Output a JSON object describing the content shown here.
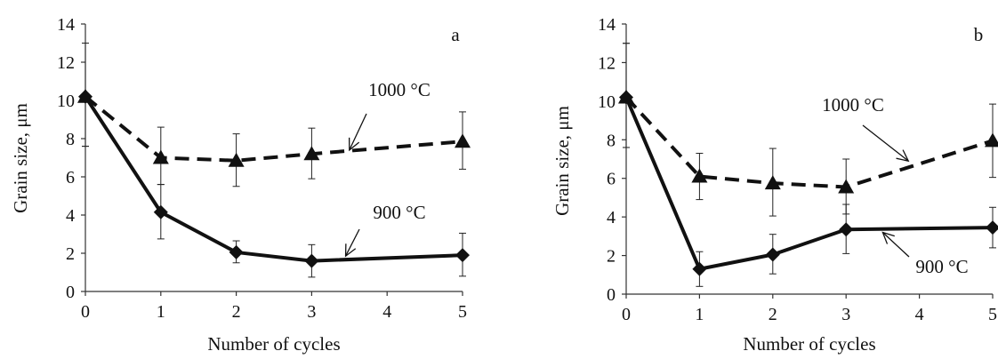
{
  "chart_data": [
    {
      "type": "line",
      "panel_label": "a",
      "xlabel": "Number of cycles",
      "ylabel": "Grain size, μm",
      "x_ticks": [
        0,
        1,
        2,
        3,
        4,
        5
      ],
      "y_ticks": [
        0,
        2,
        4,
        6,
        8,
        10,
        12,
        14
      ],
      "xlim": [
        0,
        5
      ],
      "ylim": [
        0,
        14
      ],
      "grid": false,
      "legend": "none",
      "series": [
        {
          "annotation": "1000 °C",
          "line_style": "dashed",
          "marker": "triangle",
          "color": "#111111",
          "x": [
            0,
            1,
            2,
            3,
            5
          ],
          "y": [
            10.2,
            7.0,
            6.85,
            7.2,
            7.85
          ],
          "err_low": [
            2.6,
            1.4,
            1.35,
            1.3,
            1.45
          ],
          "err_high": [
            2.8,
            1.6,
            1.4,
            1.35,
            1.55
          ]
        },
        {
          "annotation": "900 °C",
          "line_style": "solid",
          "marker": "diamond",
          "color": "#111111",
          "x": [
            0,
            1,
            2,
            3,
            5
          ],
          "y": [
            10.2,
            4.15,
            2.05,
            1.6,
            1.9
          ],
          "err_low": [
            2.6,
            1.4,
            0.55,
            0.85,
            1.1
          ],
          "err_high": [
            2.8,
            1.45,
            0.6,
            0.85,
            1.15
          ]
        }
      ],
      "annotations": [
        {
          "text": "1000 °C",
          "arrow_to": [
            3.5,
            7.4
          ]
        },
        {
          "text": "900 °C",
          "arrow_to": [
            3.45,
            1.85
          ]
        }
      ]
    },
    {
      "type": "line",
      "panel_label": "b",
      "xlabel": "Number of cycles",
      "ylabel": "Grain size, μm",
      "x_ticks": [
        0,
        1,
        2,
        3,
        4,
        5
      ],
      "y_ticks": [
        0,
        2,
        4,
        6,
        8,
        10,
        12,
        14
      ],
      "xlim": [
        0,
        5
      ],
      "ylim": [
        0,
        14
      ],
      "grid": false,
      "legend": "none",
      "series": [
        {
          "annotation": "1000 °C",
          "line_style": "dashed",
          "marker": "triangle",
          "color": "#111111",
          "x": [
            0,
            1,
            2,
            3,
            5
          ],
          "y": [
            10.2,
            6.1,
            5.75,
            5.55,
            7.95
          ],
          "err_low": [
            2.6,
            1.2,
            1.7,
            1.4,
            1.9
          ],
          "err_high": [
            2.8,
            1.2,
            1.8,
            1.45,
            1.9
          ]
        },
        {
          "annotation": "900 °C",
          "line_style": "solid",
          "marker": "diamond",
          "color": "#111111",
          "x": [
            0,
            1,
            2,
            3,
            5
          ],
          "y": [
            10.2,
            1.3,
            2.05,
            3.35,
            3.45
          ],
          "err_low": [
            2.6,
            0.9,
            1.0,
            1.25,
            1.05
          ],
          "err_high": [
            2.8,
            0.9,
            1.05,
            1.3,
            1.05
          ]
        }
      ],
      "annotations": [
        {
          "text": "1000 °C",
          "arrow_to": [
            3.85,
            6.9
          ]
        },
        {
          "text": "900 °C",
          "arrow_to": [
            3.5,
            3.2
          ]
        }
      ]
    }
  ]
}
